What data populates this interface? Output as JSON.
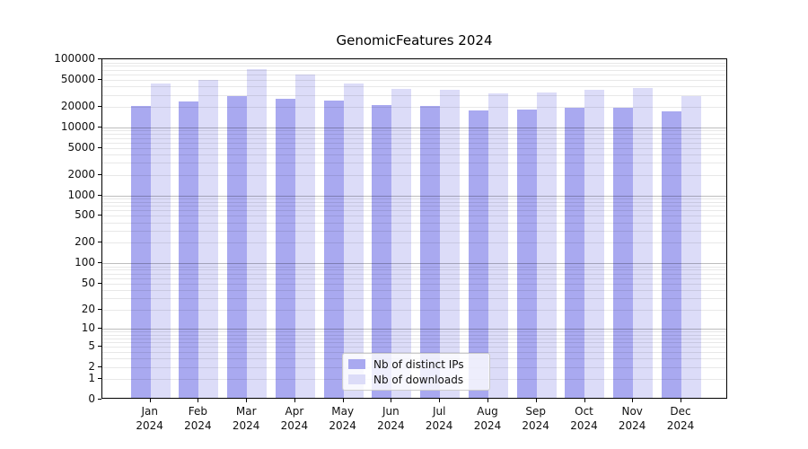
{
  "figure": {
    "title": "GenomicFeatures 2024"
  },
  "chart_data": {
    "type": "bar",
    "title": "GenomicFeatures 2024",
    "categories": [
      "Jan",
      "Feb",
      "Mar",
      "Apr",
      "May",
      "Jun",
      "Jul",
      "Aug",
      "Sep",
      "Oct",
      "Nov",
      "Dec"
    ],
    "year_label": "2024",
    "series": [
      {
        "name": "Nb of distinct IPs",
        "color": "#a9a9f0",
        "values": [
          19400,
          22800,
          27500,
          25000,
          23500,
          19800,
          19400,
          16500,
          17000,
          18000,
          18000,
          16200
        ]
      },
      {
        "name": "Nb of downloads",
        "color": "#dcdcf8",
        "values": [
          42000,
          47500,
          66500,
          57000,
          42000,
          34500,
          34000,
          30000,
          31000,
          33500,
          35500,
          27500
        ]
      }
    ],
    "yscale": "log1p",
    "ylim": [
      0,
      100000
    ],
    "yticks": [
      0,
      1,
      2,
      5,
      10,
      20,
      50,
      100,
      200,
      500,
      1000,
      2000,
      5000,
      10000,
      20000,
      50000,
      100000
    ],
    "grid": {
      "minor_color": "#e8e8e8",
      "major_color": "#bdbdbd",
      "major_lines": [
        10,
        100,
        1000,
        10000
      ]
    },
    "legend_position": "lower center",
    "xlabel": "",
    "ylabel": ""
  }
}
